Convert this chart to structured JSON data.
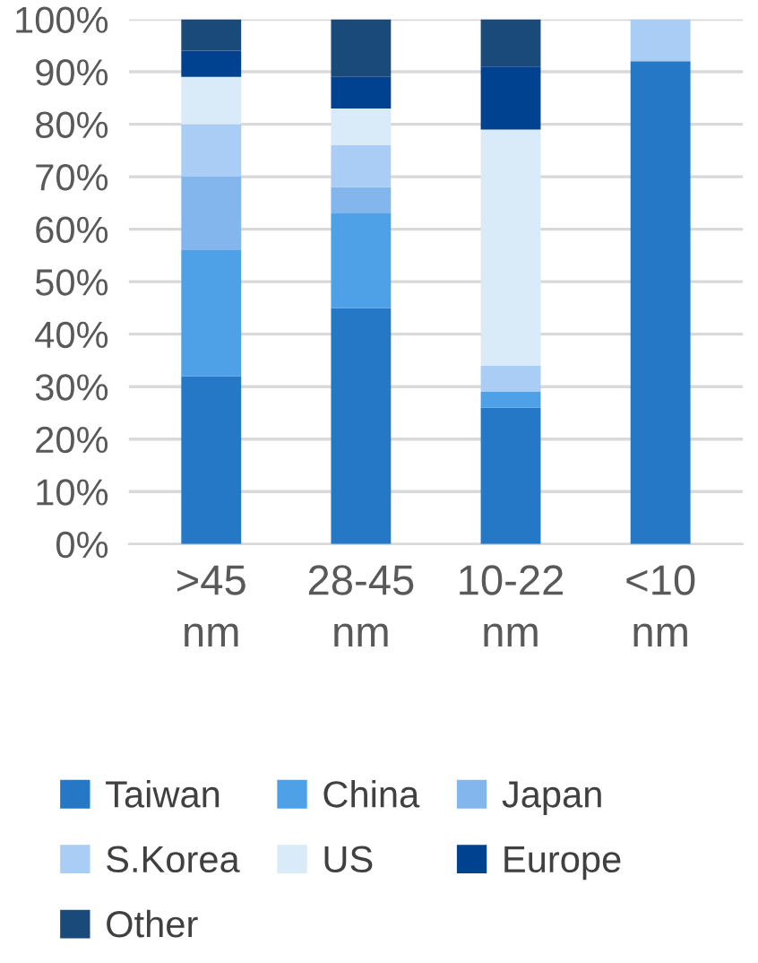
{
  "chart_data": {
    "type": "bar",
    "stacked": true,
    "categories": [
      ">45\nnm",
      "28-45\nnm",
      "10-22\nnm",
      "<10\nnm"
    ],
    "series": [
      {
        "name": "Taiwan",
        "color": "#2478c5",
        "values": [
          32,
          45,
          26,
          92
        ]
      },
      {
        "name": "China",
        "color": "#4ea1e6",
        "values": [
          24,
          18,
          3,
          0
        ]
      },
      {
        "name": "Japan",
        "color": "#82b6ed",
        "values": [
          14,
          5,
          0,
          0
        ]
      },
      {
        "name": "S.Korea",
        "color": "#a9cdf5",
        "values": [
          10,
          8,
          5,
          8
        ]
      },
      {
        "name": "US",
        "color": "#d9eaf8",
        "values": [
          9,
          7,
          45,
          0
        ]
      },
      {
        "name": "Europe",
        "color": "#00428f",
        "values": [
          5,
          6,
          12,
          0
        ]
      },
      {
        "name": "Other",
        "color": "#1a4a7a",
        "values": [
          6,
          11,
          9,
          0
        ]
      }
    ],
    "ylim": [
      0,
      100
    ],
    "yticks": [
      {
        "value": 0,
        "label": "0%"
      },
      {
        "value": 10,
        "label": "10%"
      },
      {
        "value": 20,
        "label": "20%"
      },
      {
        "value": 30,
        "label": "30%"
      },
      {
        "value": 40,
        "label": "40%"
      },
      {
        "value": 50,
        "label": "50%"
      },
      {
        "value": 60,
        "label": "60%"
      },
      {
        "value": 70,
        "label": "70%"
      },
      {
        "value": 80,
        "label": "80%"
      },
      {
        "value": 90,
        "label": "90%"
      },
      {
        "value": 100,
        "label": "100%"
      }
    ],
    "grid": "y",
    "legend": "bottom"
  }
}
